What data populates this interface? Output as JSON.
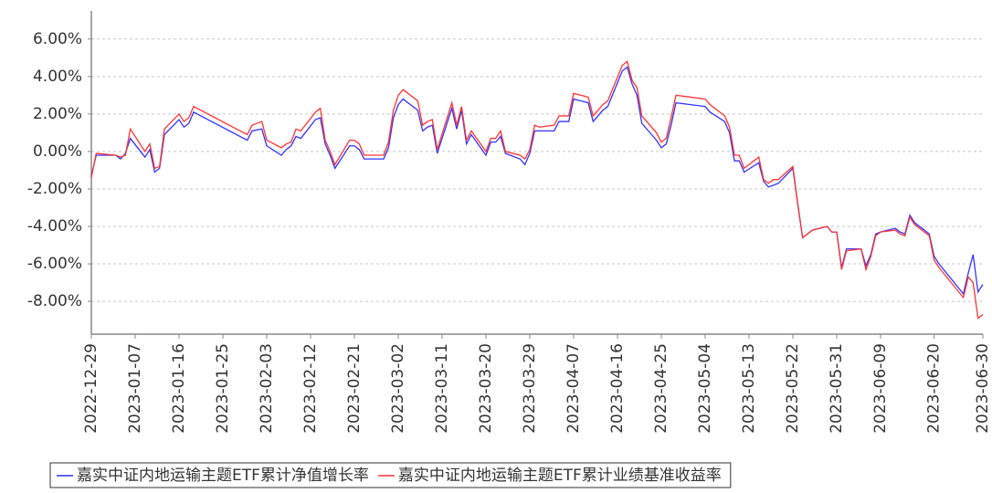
{
  "chart_data": {
    "type": "line",
    "x": [
      "2022-12-29",
      "2022-12-30",
      "2023-01-03",
      "2023-01-04",
      "2023-01-05",
      "2023-01-06",
      "2023-01-09",
      "2023-01-10",
      "2023-01-11",
      "2023-01-12",
      "2023-01-13",
      "2023-01-16",
      "2023-01-17",
      "2023-01-18",
      "2023-01-19",
      "2023-01-30",
      "2023-01-31",
      "2023-02-02",
      "2023-02-03",
      "2023-02-06",
      "2023-02-07",
      "2023-02-08",
      "2023-02-09",
      "2023-02-10",
      "2023-02-13",
      "2023-02-14",
      "2023-02-15",
      "2023-02-16",
      "2023-02-17",
      "2023-02-20",
      "2023-02-21",
      "2023-02-22",
      "2023-02-23",
      "2023-02-27",
      "2023-02-28",
      "2023-03-01",
      "2023-03-02",
      "2023-03-03",
      "2023-03-06",
      "2023-03-07",
      "2023-03-08",
      "2023-03-09",
      "2023-03-10",
      "2023-03-13",
      "2023-03-14",
      "2023-03-15",
      "2023-03-16",
      "2023-03-17",
      "2023-03-20",
      "2023-03-21",
      "2023-03-22",
      "2023-03-23",
      "2023-03-24",
      "2023-03-27",
      "2023-03-28",
      "2023-03-29",
      "2023-03-30",
      "2023-03-31",
      "2023-04-03",
      "2023-04-04",
      "2023-04-06",
      "2023-04-07",
      "2023-04-10",
      "2023-04-11",
      "2023-04-12",
      "2023-04-13",
      "2023-04-14",
      "2023-04-17",
      "2023-04-18",
      "2023-04-19",
      "2023-04-20",
      "2023-04-21",
      "2023-04-24",
      "2023-04-25",
      "2023-04-26",
      "2023-04-27",
      "2023-04-28",
      "2023-05-04",
      "2023-05-05",
      "2023-05-08",
      "2023-05-09",
      "2023-05-10",
      "2023-05-11",
      "2023-05-12",
      "2023-05-15",
      "2023-05-16",
      "2023-05-17",
      "2023-05-18",
      "2023-05-19",
      "2023-05-22",
      "2023-05-23",
      "2023-05-24",
      "2023-05-25",
      "2023-05-26",
      "2023-05-29",
      "2023-05-30",
      "2023-05-31",
      "2023-06-01",
      "2023-06-02",
      "2023-06-05",
      "2023-06-06",
      "2023-06-07",
      "2023-06-08",
      "2023-06-09",
      "2023-06-12",
      "2023-06-13",
      "2023-06-14",
      "2023-06-15",
      "2023-06-16",
      "2023-06-19",
      "2023-06-20",
      "2023-06-21",
      "2023-06-26",
      "2023-06-27",
      "2023-06-28",
      "2023-06-29",
      "2023-06-30"
    ],
    "series": [
      {
        "name": "嘉实中证内地运输主题ETF累计净值增长率",
        "color": "#3333ff",
        "values": [
          -1.3,
          -0.2,
          -0.2,
          -0.4,
          -0.1,
          0.7,
          -0.3,
          0.1,
          -1.1,
          -0.9,
          0.9,
          1.7,
          1.3,
          1.5,
          2.1,
          0.6,
          1.1,
          1.2,
          0.3,
          -0.2,
          0.1,
          0.3,
          0.8,
          0.7,
          1.7,
          1.8,
          0.4,
          -0.2,
          -0.9,
          0.3,
          0.3,
          0.1,
          -0.4,
          -0.4,
          0.2,
          1.8,
          2.5,
          2.8,
          2.2,
          1.1,
          1.3,
          1.4,
          -0.1,
          2.3,
          1.2,
          2.2,
          0.4,
          0.9,
          -0.2,
          0.5,
          0.5,
          0.8,
          -0.1,
          -0.4,
          -0.7,
          -0.1,
          1.1,
          1.1,
          1.1,
          1.6,
          1.6,
          2.8,
          2.6,
          1.6,
          1.9,
          2.2,
          2.4,
          4.3,
          4.5,
          3.6,
          3.0,
          1.5,
          0.6,
          0.2,
          0.4,
          1.4,
          2.6,
          2.4,
          2.1,
          1.6,
          1.0,
          -0.5,
          -0.5,
          -1.1,
          -0.6,
          -1.6,
          -1.9,
          -1.8,
          -1.7,
          -0.9,
          -2.8,
          -4.6,
          -4.4,
          -4.2,
          -4.0,
          -4.3,
          -4.3,
          -6.2,
          -5.2,
          -5.2,
          -6.1,
          -5.5,
          -4.4,
          -4.3,
          -4.1,
          -4.3,
          -4.4,
          -3.4,
          -3.8,
          -4.4,
          -5.6,
          -6.0,
          -7.6,
          -6.5,
          -5.5,
          -7.5,
          -7.1
        ]
      },
      {
        "name": "嘉实中证内地运输主题ETF累计业绩基准收益率",
        "color": "#ff3333",
        "values": [
          -1.4,
          -0.1,
          -0.2,
          -0.3,
          -0.2,
          1.2,
          0.0,
          0.4,
          -0.9,
          -0.8,
          1.2,
          2.0,
          1.6,
          1.8,
          2.4,
          0.9,
          1.4,
          1.6,
          0.6,
          0.2,
          0.4,
          0.5,
          1.2,
          1.1,
          2.1,
          2.3,
          0.6,
          0.0,
          -0.7,
          0.6,
          0.6,
          0.4,
          -0.2,
          -0.2,
          0.5,
          2.2,
          3.0,
          3.3,
          2.7,
          1.4,
          1.6,
          1.7,
          0.1,
          2.6,
          1.4,
          2.4,
          0.6,
          1.1,
          0.0,
          0.7,
          0.7,
          1.1,
          0.0,
          -0.2,
          -0.4,
          0.1,
          1.4,
          1.3,
          1.4,
          1.9,
          1.9,
          3.1,
          2.9,
          1.9,
          2.2,
          2.5,
          2.7,
          4.6,
          4.8,
          3.8,
          3.4,
          1.9,
          1.0,
          0.5,
          0.7,
          1.8,
          3.0,
          2.8,
          2.5,
          1.9,
          1.3,
          -0.2,
          -0.2,
          -0.9,
          -0.3,
          -1.5,
          -1.7,
          -1.5,
          -1.5,
          -0.8,
          -2.8,
          -4.6,
          -4.4,
          -4.2,
          -4.0,
          -4.3,
          -4.3,
          -6.3,
          -5.3,
          -5.2,
          -6.3,
          -5.6,
          -4.5,
          -4.3,
          -4.2,
          -4.4,
          -4.5,
          -3.5,
          -3.9,
          -4.5,
          -5.8,
          -6.2,
          -7.8,
          -6.7,
          -7.0,
          -8.9,
          -8.7
        ]
      }
    ],
    "xlim": [
      "2022-12-29",
      "2023-06-30"
    ],
    "xticks": [
      "2022-12-29",
      "2023-01-07",
      "2023-01-16",
      "2023-01-25",
      "2023-02-03",
      "2023-02-12",
      "2023-02-21",
      "2023-03-02",
      "2023-03-11",
      "2023-03-20",
      "2023-03-29",
      "2023-04-07",
      "2023-04-16",
      "2023-04-25",
      "2023-05-04",
      "2023-05-13",
      "2023-05-22",
      "2023-05-31",
      "2023-06-09",
      "2023-06-20",
      "2023-06-30"
    ],
    "ylim": [
      -9.75,
      7.5
    ],
    "yticks": [
      {
        "value": -8,
        "label": "-8.00%"
      },
      {
        "value": -6,
        "label": "-6.00%"
      },
      {
        "value": -4,
        "label": "-4.00%"
      },
      {
        "value": -2,
        "label": "-2.00%"
      },
      {
        "value": 0,
        "label": "0.00%"
      },
      {
        "value": 2,
        "label": "2.00%"
      },
      {
        "value": 4,
        "label": "4.00%"
      },
      {
        "value": 6,
        "label": "6.00%"
      }
    ],
    "grid": true
  }
}
